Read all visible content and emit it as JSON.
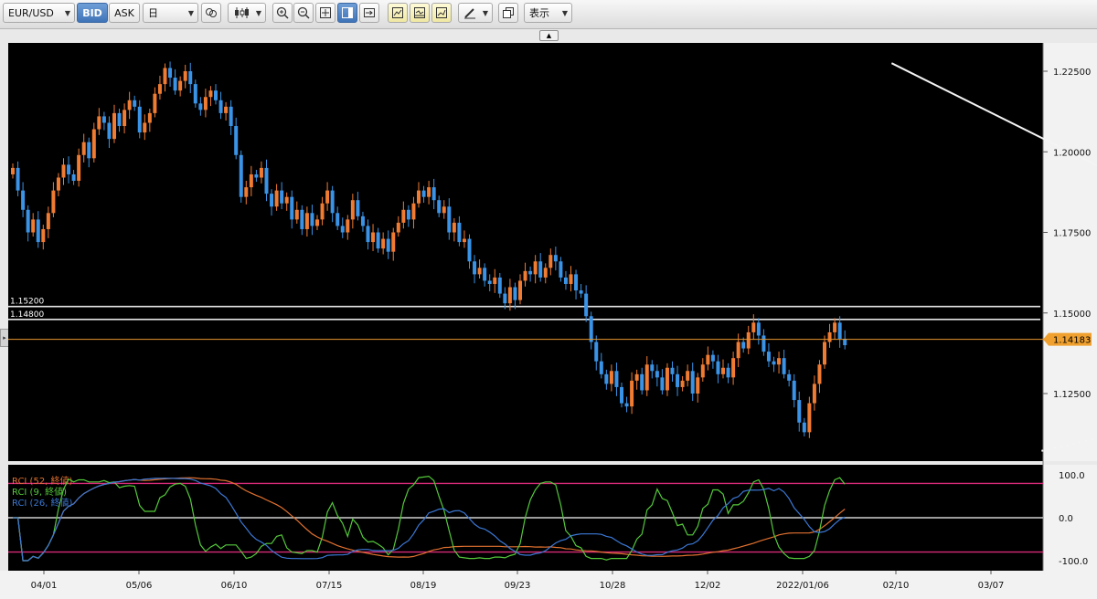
{
  "toolbar": {
    "symbol": "EUR/USD",
    "bid_label": "BID",
    "ask_label": "ASK",
    "timeframe": "日",
    "view_menu": "表示"
  },
  "chart_data": {
    "type": "candlestick",
    "symbol": "EUR/USD",
    "price_axis": {
      "range": [
        1.1045,
        1.2315
      ],
      "ticks": [
        1.225,
        1.2,
        1.175,
        1.15,
        1.125
      ],
      "tick_labels": [
        "1.22500",
        "1.20000",
        "1.17500",
        "1.15000",
        "1.12500"
      ]
    },
    "date_ticks": [
      "04/01",
      "05/06",
      "06/10",
      "07/15",
      "08/19",
      "09/23",
      "10/28",
      "12/02",
      "2022/01/06",
      "02/10",
      "03/07"
    ],
    "current_price": "1.14183",
    "horizontal_lines": [
      {
        "price": 1.152,
        "label": "1.15200"
      },
      {
        "price": 1.148,
        "label": "1.14800"
      }
    ],
    "trendline": {
      "from": [
        157,
        1.2275
      ],
      "to": [
        288,
        1.1375
      ],
      "extension_to": [
        333,
        1.107
      ],
      "note": "x = trading-bar index"
    },
    "close_series": [
      1.195,
      1.188,
      1.182,
      1.175,
      1.179,
      1.172,
      1.176,
      1.181,
      1.188,
      1.192,
      1.196,
      1.193,
      1.191,
      1.199,
      1.203,
      1.198,
      1.207,
      1.211,
      1.209,
      1.204,
      1.212,
      1.208,
      1.213,
      1.216,
      1.214,
      1.206,
      1.209,
      1.212,
      1.218,
      1.221,
      1.226,
      1.223,
      1.219,
      1.222,
      1.225,
      1.221,
      1.215,
      1.213,
      1.217,
      1.219,
      1.216,
      1.212,
      1.214,
      1.208,
      1.199,
      1.186,
      1.189,
      1.193,
      1.192,
      1.195,
      1.187,
      1.183,
      1.188,
      1.184,
      1.186,
      1.179,
      1.182,
      1.176,
      1.181,
      1.177,
      1.179,
      1.184,
      1.188,
      1.181,
      1.177,
      1.175,
      1.179,
      1.185,
      1.18,
      1.177,
      1.172,
      1.175,
      1.17,
      1.173,
      1.169,
      1.175,
      1.178,
      1.182,
      1.179,
      1.184,
      1.188,
      1.186,
      1.189,
      1.185,
      1.181,
      1.183,
      1.175,
      1.178,
      1.172,
      1.173,
      1.166,
      1.162,
      1.164,
      1.16,
      1.159,
      1.161,
      1.156,
      1.153,
      1.158,
      1.154,
      1.16,
      1.163,
      1.162,
      1.166,
      1.161,
      1.164,
      1.168,
      1.166,
      1.161,
      1.159,
      1.162,
      1.157,
      1.156,
      1.149,
      1.141,
      1.135,
      1.131,
      1.128,
      1.132,
      1.127,
      1.122,
      1.121,
      1.129,
      1.131,
      1.126,
      1.134,
      1.132,
      1.13,
      1.126,
      1.133,
      1.131,
      1.127,
      1.129,
      1.132,
      1.125,
      1.13,
      1.134,
      1.137,
      1.135,
      1.131,
      1.133,
      1.13,
      1.136,
      1.141,
      1.139,
      1.144,
      1.147,
      1.143,
      1.138,
      1.135,
      1.134,
      1.136,
      1.131,
      1.129,
      1.123,
      1.116,
      1.113,
      1.122,
      1.128,
      1.134,
      1.141,
      1.144,
      1.147,
      1.142,
      1.14
    ],
    "rci_panel": {
      "range": [
        -100,
        100
      ],
      "tick_labels": [
        "100.0",
        "0.0",
        "-100.0"
      ],
      "reference_levels": [
        80,
        0,
        -80
      ],
      "series": [
        {
          "name": "RCI (52, 終値)",
          "color": "#e0702f"
        },
        {
          "name": "RCI (9, 終値)",
          "color": "#54c93a"
        },
        {
          "name": "RCI (26, 終値)",
          "color": "#3b78d6"
        }
      ]
    }
  }
}
